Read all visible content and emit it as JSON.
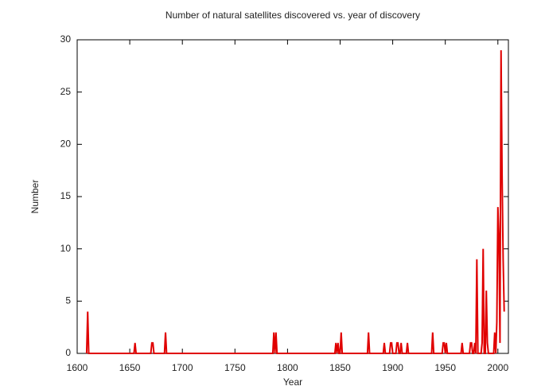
{
  "chart_data": {
    "type": "line",
    "title": "Number of natural satellites discovered vs. year of discovery",
    "x_label": "Year",
    "y_label": "Number",
    "color": "#e00000",
    "x": [
      1609,
      1610,
      1611,
      1654,
      1655,
      1656,
      1670,
      1671,
      1672,
      1673,
      1683,
      1684,
      1685,
      1786,
      1787,
      1788,
      1789,
      1790,
      1845,
      1846,
      1847,
      1848,
      1849,
      1850,
      1851,
      1852,
      1876,
      1877,
      1878,
      1891,
      1892,
      1893,
      1897,
      1898,
      1899,
      1900,
      1903,
      1904,
      1905,
      1906,
      1907,
      1908,
      1909,
      1913,
      1914,
      1915,
      1937,
      1938,
      1939,
      1947,
      1948,
      1949,
      1950,
      1951,
      1952,
      1965,
      1966,
      1967,
      1973,
      1974,
      1975,
      1976,
      1977,
      1978,
      1979,
      1980,
      1981,
      1984,
      1985,
      1986,
      1987,
      1988,
      1989,
      1990,
      1991,
      1996,
      1997,
      1998,
      1999,
      2000,
      2001,
      2002,
      2003,
      2004,
      2005,
      2006
    ],
    "values": [
      0,
      4,
      0,
      0,
      1,
      0,
      0,
      1,
      1,
      0,
      0,
      2,
      0,
      0,
      2,
      0,
      2,
      0,
      0,
      1,
      0,
      1,
      0,
      0,
      2,
      0,
      0,
      2,
      0,
      0,
      1,
      0,
      0,
      1,
      1,
      0,
      0,
      1,
      1,
      0,
      0,
      1,
      0,
      0,
      1,
      0,
      0,
      2,
      0,
      0,
      1,
      1,
      0,
      1,
      0,
      0,
      1,
      0,
      0,
      1,
      1,
      0,
      0,
      1,
      0,
      9,
      0,
      0,
      1,
      10,
      0,
      0,
      6,
      1,
      0,
      0,
      2,
      0,
      3,
      14,
      11,
      1,
      29,
      17,
      9,
      4
    ],
    "xlim": [
      1600,
      2010
    ],
    "ylim": [
      0,
      30
    ],
    "xticks": [
      1600,
      1650,
      1700,
      1750,
      1800,
      1850,
      1900,
      1950,
      2000
    ],
    "yticks": [
      0,
      5,
      10,
      15,
      20,
      25,
      30
    ]
  }
}
